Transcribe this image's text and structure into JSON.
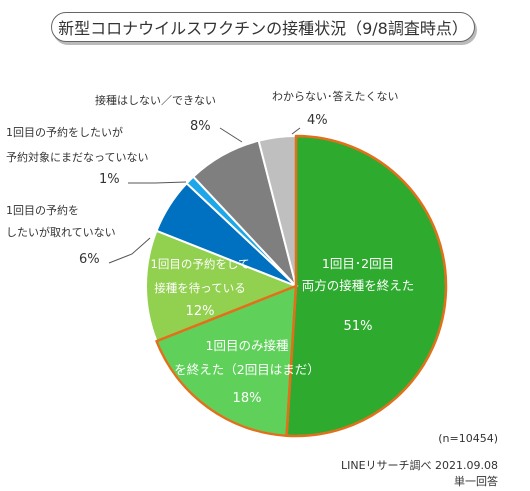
{
  "title": "新型コロナウイルスワクチンの接種状況（9/8調査時点）",
  "chart_data": {
    "type": "pie",
    "slices": [
      {
        "label_lines": [
          "1回目･2回目",
          "両方の接種を終えた"
        ],
        "percent_label": "51%",
        "value": 51,
        "color": "#2eaa2f",
        "highlight": true
      },
      {
        "label_lines": [
          "1回目のみ接種",
          "を終えた（2回目はまだ）"
        ],
        "percent_label": "18%",
        "value": 18,
        "color": "#5fd15b",
        "highlight": true
      },
      {
        "label_lines": [
          "1回目の予約をして",
          "接種を待っている"
        ],
        "percent_label": "12%",
        "value": 12,
        "color": "#92d050",
        "highlight": false
      },
      {
        "label_lines": [
          "1回目の予約を",
          "したいが取れていない"
        ],
        "percent_label": "6%",
        "value": 6,
        "color": "#0070c0",
        "highlight": false
      },
      {
        "label_lines": [
          "1回目の予約をしたいが",
          "予約対象にまだなっていない"
        ],
        "percent_label": "1%",
        "value": 1,
        "color": "#1ea7e8",
        "highlight": false
      },
      {
        "label_lines": [
          "接種はしない／できない"
        ],
        "percent_label": "8%",
        "value": 8,
        "color": "#7f7f7f",
        "highlight": false
      },
      {
        "label_lines": [
          "わからない･答えたくない"
        ],
        "percent_label": "4%",
        "value": 4,
        "color": "#bfbfbf",
        "highlight": false
      }
    ]
  },
  "footer": {
    "n": "(n=10454)",
    "source": "LINEリサーチ調べ 2021.09.08",
    "answer_type": "単一回答"
  }
}
